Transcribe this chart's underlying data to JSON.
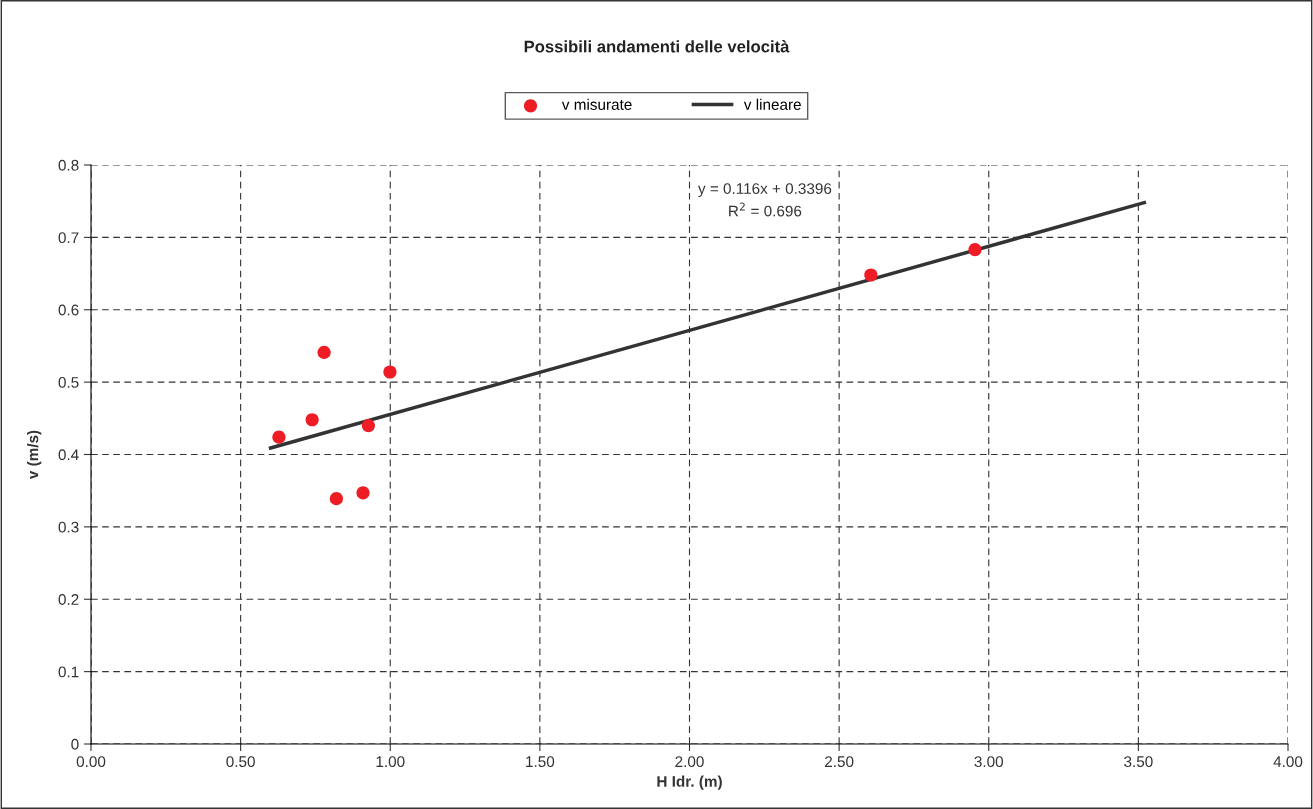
{
  "chart_data": {
    "type": "scatter",
    "title": "Possibili andamenti delle velocità",
    "xlabel": "H Idr. (m)",
    "ylabel": "v (m/s)",
    "xlim": [
      0,
      4
    ],
    "ylim": [
      0,
      0.8
    ],
    "xticks": [
      {
        "value": 0,
        "label": "0.00"
      },
      {
        "value": 0.5,
        "label": "0.50"
      },
      {
        "value": 1,
        "label": "1.00"
      },
      {
        "value": 1.5,
        "label": "1.50"
      },
      {
        "value": 2,
        "label": "2.00"
      },
      {
        "value": 2.5,
        "label": "2.50"
      },
      {
        "value": 3,
        "label": "3.00"
      },
      {
        "value": 3.5,
        "label": "3.50"
      },
      {
        "value": 4,
        "label": "4.00"
      }
    ],
    "yticks": [
      {
        "value": 0,
        "label": "0"
      },
      0.1,
      0.2,
      0.3,
      0.4,
      0.5,
      0.6,
      0.7,
      0.8
    ],
    "grid": true,
    "legend": "top",
    "annotations": [
      "y = 0.116x + 0.3396",
      "R$^{2}$ = 0.696"
    ],
    "series": [
      {
        "name": "v misurate",
        "marker": "circle",
        "color": "#ee1c25",
        "x": [
          0.628,
          0.739,
          0.779,
          0.82,
          0.909,
          0.927,
          0.999,
          2.606,
          2.954
        ],
        "values": [
          0.424,
          0.448,
          0.541,
          0.339,
          0.347,
          0.44,
          0.514,
          0.648,
          0.683
        ]
      },
      {
        "name": "v lineare",
        "type": "line",
        "marker": "none",
        "color": "#333333",
        "x": [
          0.6,
          3.52
        ],
        "values": [
          0.409,
          0.748
        ]
      }
    ]
  }
}
